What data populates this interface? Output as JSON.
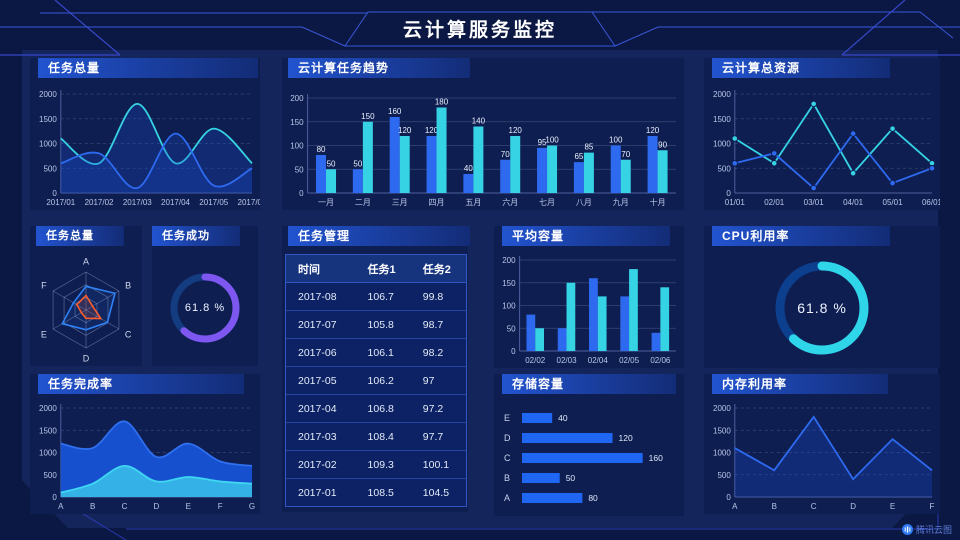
{
  "header": {
    "title": "云计算服务监控"
  },
  "watermark": {
    "label": "腾讯云图"
  },
  "colors": {
    "blue": "#2e6af0",
    "cyan": "#36d3e5",
    "purple": "#7e57f0",
    "orange": "#fb5c2c",
    "bar_blue": "#1f66f2"
  },
  "panels": {
    "task_total_line": {
      "title": "任务总量"
    },
    "task_trend": {
      "title": "云计算任务趋势"
    },
    "total_resources": {
      "title": "云计算总资源"
    },
    "task_total_radar": {
      "title": "任务总量"
    },
    "task_success": {
      "title": "任务成功",
      "value": "61.8 %"
    },
    "task_management": {
      "title": "任务管理"
    },
    "average_capacity": {
      "title": "平均容量"
    },
    "cpu_utilization": {
      "title": "CPU利用率",
      "value": "61.8 %"
    },
    "task_completion": {
      "title": "任务完成率"
    },
    "storage_capacity": {
      "title": "存储容量"
    },
    "memory_utilization": {
      "title": "内存利用率"
    }
  },
  "chart_data": [
    {
      "id": "task_total_line",
      "type": "line",
      "title": "任务总量",
      "x": [
        "2017/01",
        "2017/02",
        "2017/03",
        "2017/04",
        "2017/05",
        "2017/06"
      ],
      "smooth": true,
      "markers": false,
      "grid": "dash",
      "ylim": [
        0,
        2000
      ],
      "yticks": [
        0,
        500,
        1000,
        1500,
        2000
      ],
      "series": [
        {
          "name": "series1",
          "color": "#36d3e5",
          "fill": "#1d4ed8",
          "fill_opacity": 0.25,
          "values": [
            1100,
            600,
            1800,
            600,
            1300,
            600
          ]
        },
        {
          "name": "series2",
          "color": "#2e6af0",
          "fill": "#1d4ed8",
          "fill_opacity": 0.25,
          "values": [
            600,
            800,
            100,
            1200,
            150,
            500
          ]
        }
      ]
    },
    {
      "id": "task_trend",
      "type": "bar",
      "title": "云计算任务趋势",
      "categories": [
        "一月",
        "二月",
        "三月",
        "四月",
        "五月",
        "六月",
        "七月",
        "八月",
        "九月",
        "十月"
      ],
      "ylim": [
        0,
        200
      ],
      "yticks": [
        0,
        50,
        100,
        150,
        200
      ],
      "grid": "solid",
      "value_labels": true,
      "series": [
        {
          "name": "series1",
          "color": "#2e6af0",
          "values": [
            80,
            50,
            160,
            120,
            40,
            70,
            95,
            65,
            100,
            120
          ]
        },
        {
          "name": "series2",
          "color": "#36d3e5",
          "values": [
            50,
            150,
            120,
            180,
            140,
            120,
            100,
            85,
            70,
            90
          ]
        }
      ]
    },
    {
      "id": "total_resources",
      "type": "line",
      "title": "云计算总资源",
      "x": [
        "01/01",
        "02/01",
        "03/01",
        "04/01",
        "05/01",
        "06/01"
      ],
      "smooth": false,
      "markers": true,
      "grid": "dash",
      "ylim": [
        0,
        2000
      ],
      "yticks": [
        0,
        500,
        1000,
        1500,
        2000
      ],
      "series": [
        {
          "name": "series1",
          "color": "#36d3e5",
          "fill_opacity": 0,
          "values": [
            1100,
            600,
            1800,
            400,
            1300,
            600
          ]
        },
        {
          "name": "series2",
          "color": "#2e6af0",
          "fill_opacity": 0,
          "values": [
            600,
            800,
            100,
            1200,
            200,
            500
          ]
        }
      ]
    },
    {
      "id": "task_total_radar",
      "type": "radar",
      "title": "任务总量",
      "axes": [
        "A",
        "B",
        "C",
        "D",
        "E",
        "F"
      ],
      "max": 100,
      "series": [
        {
          "name": "blue",
          "color": "#2e82f6",
          "values": [
            62,
            88,
            65,
            52,
            72,
            38
          ]
        },
        {
          "name": "orange",
          "color": "#fb5c2c",
          "values": [
            38,
            20,
            45,
            22,
            14,
            28
          ]
        }
      ]
    },
    {
      "id": "task_success",
      "type": "donut",
      "title": "任务成功",
      "percent": 61.8,
      "label": "61.8 %",
      "color": "#7e57f0",
      "track": "#143c80"
    },
    {
      "id": "task_management",
      "type": "table",
      "title": "任务管理",
      "headers": [
        "时间",
        "任务1",
        "任务2"
      ],
      "rows": [
        [
          "2017-08",
          "106.7",
          "99.8"
        ],
        [
          "2017-07",
          "105.8",
          "98.7"
        ],
        [
          "2017-06",
          "106.1",
          "98.2"
        ],
        [
          "2017-05",
          "106.2",
          "97"
        ],
        [
          "2017-04",
          "106.8",
          "97.2"
        ],
        [
          "2017-03",
          "108.4",
          "97.7"
        ],
        [
          "2017-02",
          "109.3",
          "100.1"
        ],
        [
          "2017-01",
          "108.5",
          "104.5"
        ]
      ]
    },
    {
      "id": "average_capacity",
      "type": "bar",
      "title": "平均容量",
      "categories": [
        "02/02",
        "02/03",
        "02/04",
        "02/05",
        "02/06"
      ],
      "ylim": [
        0,
        200
      ],
      "yticks": [
        0,
        50,
        100,
        150,
        200
      ],
      "grid": "solid",
      "value_labels": false,
      "series": [
        {
          "name": "series1",
          "color": "#2e6af0",
          "values": [
            80,
            50,
            160,
            120,
            40
          ]
        },
        {
          "name": "series2",
          "color": "#36d3e5",
          "values": [
            50,
            150,
            120,
            180,
            140
          ]
        }
      ]
    },
    {
      "id": "cpu_utilization",
      "type": "donut",
      "title": "CPU利用率",
      "percent": 61.8,
      "label": "61.8 %",
      "color": "#2fd5e8",
      "track": "#0d3f8f"
    },
    {
      "id": "task_completion",
      "type": "line",
      "title": "任务完成率",
      "x": [
        "A",
        "B",
        "C",
        "D",
        "E",
        "F",
        "G"
      ],
      "smooth": true,
      "markers": false,
      "grid": "dash",
      "ylim": [
        0,
        2000
      ],
      "yticks": [
        0,
        500,
        1000,
        1500,
        2000
      ],
      "series": [
        {
          "name": "blue",
          "color": "#2f6ff0",
          "fill": "#1753d6",
          "fill_opacity": 0.95,
          "values": [
            1200,
            1100,
            1700,
            900,
            1200,
            800,
            700
          ]
        },
        {
          "name": "cyan",
          "color": "#3fd6f2",
          "fill": "#36b7e8",
          "fill_opacity": 0.95,
          "values": [
            100,
            300,
            700,
            350,
            450,
            350,
            300
          ]
        }
      ]
    },
    {
      "id": "storage_capacity",
      "type": "hbar",
      "title": "存储容量",
      "categories": [
        "E",
        "D",
        "C",
        "B",
        "A"
      ],
      "values": [
        40,
        120,
        160,
        50,
        80
      ],
      "xmax": 175,
      "color": "#1f66f2"
    },
    {
      "id": "memory_utilization",
      "type": "line",
      "title": "内存利用率",
      "x": [
        "A",
        "B",
        "C",
        "D",
        "E",
        "F"
      ],
      "smooth": false,
      "markers": false,
      "grid": "dash",
      "ylim": [
        0,
        2000
      ],
      "yticks": [
        0,
        500,
        1000,
        1500,
        2000
      ],
      "series": [
        {
          "name": "blue",
          "color": "#2e6af0",
          "fill": "#1d4ed8",
          "fill_opacity": 0.28,
          "values": [
            1100,
            600,
            1800,
            400,
            1300,
            600
          ]
        }
      ]
    }
  ]
}
